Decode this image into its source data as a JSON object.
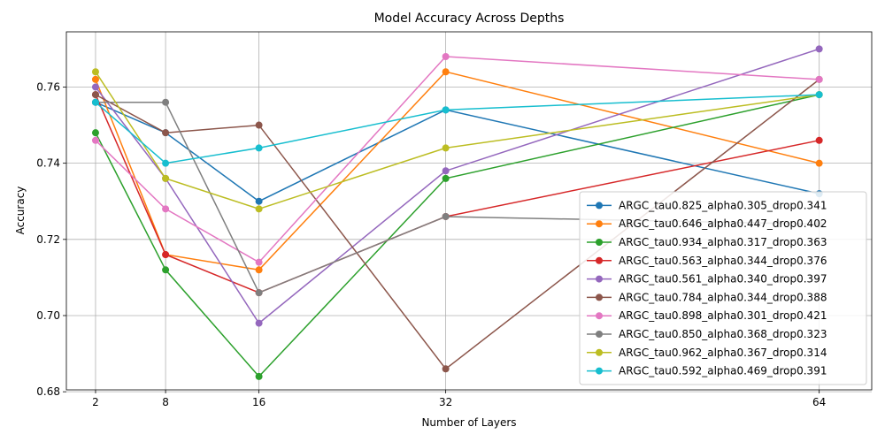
{
  "chart_data": {
    "type": "line",
    "title": "Model Accuracy Across Depths",
    "xlabel": "Number of Layers",
    "ylabel": "Accuracy",
    "x": [
      2,
      8,
      16,
      32,
      64
    ],
    "x_tick_labels": [
      "2",
      "8",
      "16",
      "32",
      "64"
    ],
    "y_ticks": [
      0.68,
      0.7,
      0.72,
      0.74,
      0.76
    ],
    "y_tick_labels": [
      "0.68",
      "0.70",
      "0.72",
      "0.74",
      "0.76"
    ],
    "xlim": [
      -0.5,
      68.5
    ],
    "ylim": [
      0.6805,
      0.7745
    ],
    "grid": true,
    "legend_position": "lower-right",
    "marker": "circle",
    "series": [
      {
        "name": "ARGC_tau0.825_alpha0.305_drop0.341",
        "color": "#1f77b4",
        "values": [
          0.756,
          0.748,
          0.73,
          0.754,
          0.732
        ]
      },
      {
        "name": "ARGC_tau0.646_alpha0.447_drop0.402",
        "color": "#ff7f0e",
        "values": [
          0.762,
          0.716,
          0.712,
          0.764,
          0.74
        ]
      },
      {
        "name": "ARGC_tau0.934_alpha0.317_drop0.363",
        "color": "#2ca02c",
        "values": [
          0.748,
          0.712,
          0.684,
          0.736,
          0.758
        ]
      },
      {
        "name": "ARGC_tau0.563_alpha0.344_drop0.376",
        "color": "#d62728",
        "values": [
          0.758,
          0.716,
          0.706,
          0.726,
          0.746
        ]
      },
      {
        "name": "ARGC_tau0.561_alpha0.340_drop0.397",
        "color": "#9467bd",
        "values": [
          0.76,
          0.736,
          0.698,
          0.738,
          0.77
        ]
      },
      {
        "name": "ARGC_tau0.784_alpha0.344_drop0.388",
        "color": "#8c564b",
        "values": [
          0.758,
          0.748,
          0.75,
          0.686,
          0.762
        ]
      },
      {
        "name": "ARGC_tau0.898_alpha0.301_drop0.421",
        "color": "#e377c2",
        "values": [
          0.746,
          0.728,
          0.714,
          0.768,
          0.762
        ]
      },
      {
        "name": "ARGC_tau0.850_alpha0.368_drop0.323",
        "color": "#7f7f7f",
        "values": [
          0.756,
          0.756,
          0.706,
          0.726,
          0.724
        ]
      },
      {
        "name": "ARGC_tau0.962_alpha0.367_drop0.314",
        "color": "#bcbd22",
        "values": [
          0.764,
          0.736,
          0.728,
          0.744,
          0.758
        ]
      },
      {
        "name": "ARGC_tau0.592_alpha0.469_drop0.391",
        "color": "#17becf",
        "values": [
          0.756,
          0.74,
          0.744,
          0.754,
          0.758
        ]
      }
    ]
  }
}
